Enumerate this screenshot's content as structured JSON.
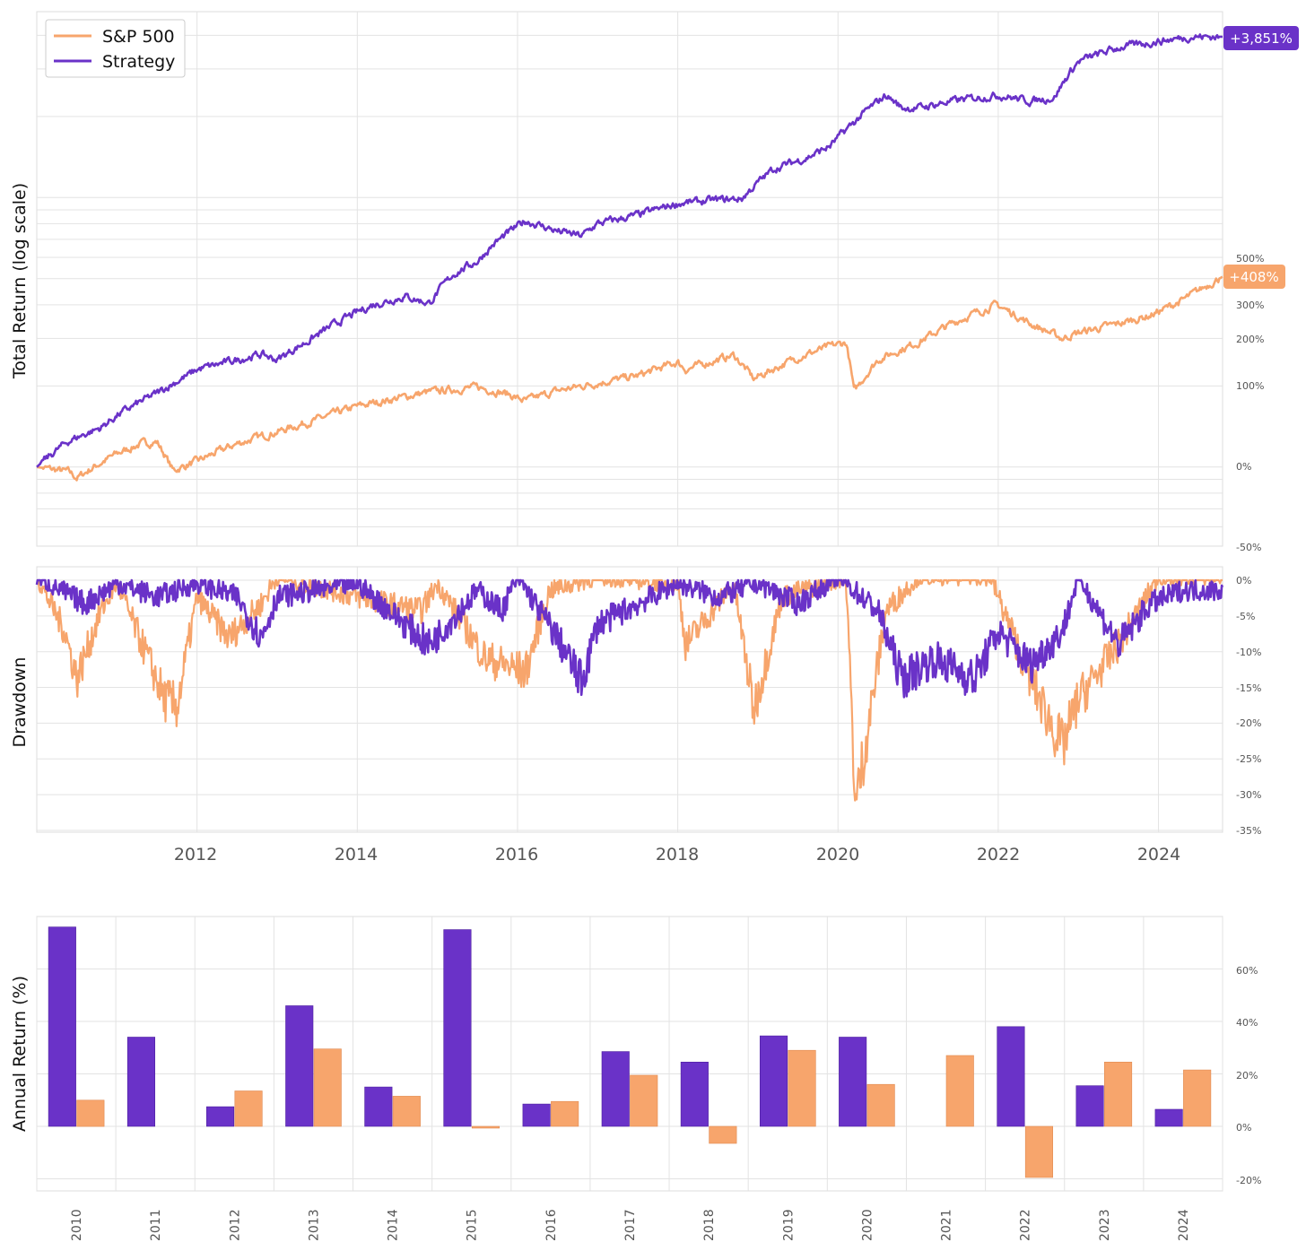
{
  "colors": {
    "sp500": "#f7a56c",
    "strategy": "#6a32c8",
    "grid": "#e3e3e3",
    "frame": "#dcdcdc"
  },
  "legend": {
    "placement": "top-left",
    "entries": [
      "S&P 500",
      "Strategy"
    ]
  },
  "chart_data": [
    {
      "type": "line",
      "ylabel": "Total Return (log scale)",
      "yscale": "log",
      "y_ticks": [
        "500%",
        "300%",
        "200%",
        "100%",
        "0%",
        "-50%"
      ],
      "end_labels": {
        "strategy": "+3,851%",
        "sp500": "+408%"
      },
      "series": [
        {
          "name": "S&P 500",
          "points": [
            [
              2010.0,
              0
            ],
            [
              2010.4,
              -4
            ],
            [
              2010.5,
              -9
            ],
            [
              2011.0,
              12
            ],
            [
              2011.3,
              22
            ],
            [
              2011.5,
              24
            ],
            [
              2011.7,
              -3
            ],
            [
              2012.0,
              5
            ],
            [
              2012.5,
              22
            ],
            [
              2013.0,
              35
            ],
            [
              2013.5,
              50
            ],
            [
              2014.0,
              68
            ],
            [
              2014.5,
              80
            ],
            [
              2014.9,
              90
            ],
            [
              2015.5,
              98
            ],
            [
              2015.9,
              86
            ],
            [
              2016.0,
              80
            ],
            [
              2016.1,
              76
            ],
            [
              2016.5,
              92
            ],
            [
              2017.0,
              105
            ],
            [
              2017.5,
              118
            ],
            [
              2018.0,
              145
            ],
            [
              2018.1,
              130
            ],
            [
              2018.7,
              160
            ],
            [
              2018.95,
              112
            ],
            [
              2019.5,
              155
            ],
            [
              2019.9,
              180
            ],
            [
              2020.1,
              190
            ],
            [
              2020.2,
              90
            ],
            [
              2020.5,
              150
            ],
            [
              2021.0,
              190
            ],
            [
              2021.5,
              250
            ],
            [
              2021.98,
              300
            ],
            [
              2022.4,
              240
            ],
            [
              2022.8,
              200
            ],
            [
              2023.0,
              215
            ],
            [
              2023.5,
              240
            ],
            [
              2023.9,
              265
            ],
            [
              2024.3,
              315
            ],
            [
              2024.8,
              408
            ]
          ]
        },
        {
          "name": "Strategy",
          "points": [
            [
              2010.0,
              0
            ],
            [
              2010.4,
              25
            ],
            [
              2010.8,
              40
            ],
            [
              2011.0,
              55
            ],
            [
              2011.5,
              88
            ],
            [
              2011.9,
              120
            ],
            [
              2012.0,
              130
            ],
            [
              2012.5,
              150
            ],
            [
              2012.8,
              162
            ],
            [
              2013.0,
              150
            ],
            [
              2013.4,
              195
            ],
            [
              2013.8,
              250
            ],
            [
              2014.2,
              300
            ],
            [
              2014.6,
              330
            ],
            [
              2014.9,
              305
            ],
            [
              2015.2,
              420
            ],
            [
              2015.5,
              480
            ],
            [
              2015.7,
              570
            ],
            [
              2016.1,
              720
            ],
            [
              2016.5,
              650
            ],
            [
              2016.8,
              620
            ],
            [
              2017.0,
              700
            ],
            [
              2017.5,
              760
            ],
            [
              2018.0,
              850
            ],
            [
              2018.5,
              880
            ],
            [
              2018.8,
              890
            ],
            [
              2019.2,
              1180
            ],
            [
              2019.6,
              1300
            ],
            [
              2019.9,
              1450
            ],
            [
              2020.2,
              1800
            ],
            [
              2020.6,
              2300
            ],
            [
              2020.8,
              2050
            ],
            [
              2021.0,
              2050
            ],
            [
              2021.5,
              2200
            ],
            [
              2022.0,
              2300
            ],
            [
              2022.4,
              2180
            ],
            [
              2022.7,
              2250
            ],
            [
              2023.0,
              3100
            ],
            [
              2023.5,
              3500
            ],
            [
              2024.0,
              3700
            ],
            [
              2024.4,
              3850
            ],
            [
              2024.8,
              3851
            ]
          ]
        }
      ]
    },
    {
      "type": "line",
      "ylabel": "Drawdown",
      "y_ticks": [
        "0%",
        "-5%",
        "-10%",
        "-15%",
        "-20%",
        "-25%",
        "-30%",
        "-35%"
      ],
      "x_ticks": [
        "2012",
        "2014",
        "2016",
        "2018",
        "2020",
        "2022",
        "2024"
      ],
      "series": [
        {
          "name": "S&P 500",
          "points": [
            [
              2010.0,
              0
            ],
            [
              2010.35,
              -8
            ],
            [
              2010.5,
              -15
            ],
            [
              2010.8,
              -5
            ],
            [
              2011.0,
              -1
            ],
            [
              2011.6,
              -18
            ],
            [
              2011.75,
              -19
            ],
            [
              2012.0,
              -3
            ],
            [
              2012.4,
              -9
            ],
            [
              2012.8,
              -4
            ],
            [
              2013.0,
              0
            ],
            [
              2014.0,
              -3
            ],
            [
              2014.8,
              -5
            ],
            [
              2015.0,
              -1
            ],
            [
              2015.6,
              -12
            ],
            [
              2016.1,
              -14
            ],
            [
              2016.4,
              -2
            ],
            [
              2017.0,
              0
            ],
            [
              2018.0,
              -1
            ],
            [
              2018.1,
              -10
            ],
            [
              2018.7,
              -1
            ],
            [
              2018.95,
              -19.5
            ],
            [
              2019.3,
              -3
            ],
            [
              2020.1,
              0
            ],
            [
              2020.22,
              -33.8
            ],
            [
              2020.6,
              -5
            ],
            [
              2021.0,
              0
            ],
            [
              2021.9,
              0
            ],
            [
              2022.4,
              -15
            ],
            [
              2022.8,
              -25
            ],
            [
              2023.0,
              -18
            ],
            [
              2023.5,
              -10
            ],
            [
              2024.0,
              0
            ],
            [
              2024.3,
              0
            ],
            [
              2024.8,
              0
            ]
          ]
        },
        {
          "name": "Strategy",
          "points": [
            [
              2010.0,
              0
            ],
            [
              2010.6,
              -4
            ],
            [
              2011.0,
              -1
            ],
            [
              2011.5,
              -3
            ],
            [
              2012.0,
              -1
            ],
            [
              2012.5,
              -3
            ],
            [
              2012.8,
              -9
            ],
            [
              2013.0,
              -3
            ],
            [
              2014.0,
              -1
            ],
            [
              2014.4,
              -5
            ],
            [
              2014.9,
              -10
            ],
            [
              2015.5,
              -2
            ],
            [
              2015.8,
              -5
            ],
            [
              2016.0,
              0
            ],
            [
              2016.5,
              -9
            ],
            [
              2016.8,
              -15.5
            ],
            [
              2017.0,
              -7
            ],
            [
              2017.5,
              -4
            ],
            [
              2018.0,
              -1
            ],
            [
              2018.5,
              -3
            ],
            [
              2019.0,
              -1
            ],
            [
              2019.5,
              -4
            ],
            [
              2020.0,
              0
            ],
            [
              2020.5,
              -5
            ],
            [
              2020.8,
              -15
            ],
            [
              2021.2,
              -12
            ],
            [
              2021.7,
              -15
            ],
            [
              2022.0,
              -8
            ],
            [
              2022.4,
              -13
            ],
            [
              2022.8,
              -8
            ],
            [
              2023.0,
              0
            ],
            [
              2023.5,
              -10
            ],
            [
              2023.9,
              -4
            ],
            [
              2024.3,
              -2
            ],
            [
              2024.8,
              -2
            ]
          ]
        }
      ]
    },
    {
      "type": "bar",
      "ylabel": "Annual Return (%)",
      "categories": [
        "2010",
        "2011",
        "2012",
        "2013",
        "2014",
        "2015",
        "2016",
        "2017",
        "2018",
        "2019",
        "2020",
        "2021",
        "2022",
        "2023",
        "2024"
      ],
      "y_ticks": [
        "60%",
        "40%",
        "20%",
        "0%",
        "-20%"
      ],
      "ylim": [
        -25,
        80
      ],
      "series": [
        {
          "name": "Strategy",
          "values": [
            76,
            34,
            7.5,
            46,
            15,
            75,
            8.5,
            28.5,
            24.5,
            34.5,
            34,
            0,
            38,
            15.5,
            6.5
          ]
        },
        {
          "name": "S&P 500",
          "values": [
            10,
            0,
            13.5,
            29.5,
            11.5,
            -0.7,
            9.5,
            19.5,
            -6.5,
            29,
            16,
            27,
            -19.5,
            24.5,
            21.5
          ]
        }
      ]
    }
  ]
}
